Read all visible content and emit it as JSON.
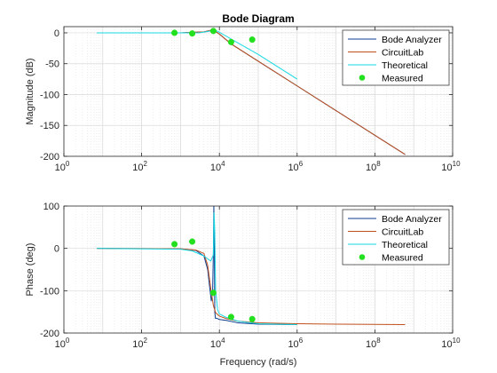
{
  "chart_data": [
    {
      "type": "line",
      "title": "Bode Diagram",
      "ylabel": "Magnitude (dB)",
      "xlabel": "",
      "xscale": "log",
      "xlim": [
        1,
        10000000000
      ],
      "ylim": [
        -200,
        10
      ],
      "xticks": [
        1,
        100,
        10000,
        1000000,
        100000000,
        10000000000
      ],
      "xtick_labels": [
        {
          "base": "10",
          "exp": "0"
        },
        {
          "base": "10",
          "exp": "2"
        },
        {
          "base": "10",
          "exp": "4"
        },
        {
          "base": "10",
          "exp": "6"
        },
        {
          "base": "10",
          "exp": "8"
        },
        {
          "base": "10",
          "exp": "10"
        }
      ],
      "yticks": [
        0,
        -50,
        -100,
        -150,
        -200
      ],
      "ytick_labels": [
        "0",
        "-50",
        "-100",
        "-150",
        "-200"
      ],
      "grid": true,
      "legend_position": "top-right",
      "series": [
        {
          "name": "Bode Analyzer",
          "color": "#0b3d91",
          "style": "line",
          "x": [
            7,
            1000,
            4000,
            6000,
            7500,
            10000,
            20000,
            100000,
            1000000,
            10000000,
            600000000
          ],
          "y": [
            0,
            0,
            1.5,
            4,
            3,
            -2,
            -18,
            -46,
            -86,
            -126,
            -197
          ]
        },
        {
          "name": "CircuitLab",
          "color": "#c0501d",
          "style": "line",
          "x": [
            7,
            1000,
            4000,
            6000,
            7500,
            10000,
            20000,
            100000,
            1000000,
            10000000,
            600000000
          ],
          "y": [
            0,
            0,
            1.5,
            4,
            3,
            -2,
            -18,
            -46,
            -86,
            -126,
            -197
          ]
        },
        {
          "name": "Theoretical",
          "color": "#16d9e3",
          "style": "line",
          "x": [
            7,
            1000,
            3000,
            6000,
            8000,
            10000,
            20000,
            100000,
            1000000
          ],
          "y": [
            0,
            0,
            0,
            3,
            4,
            1,
            -10,
            -35,
            -75
          ]
        },
        {
          "name": "Measured",
          "color": "#22e01e",
          "style": "markers",
          "x": [
            700,
            2000,
            7000,
            20000,
            70000
          ],
          "y": [
            0,
            -1,
            3,
            -15,
            -11
          ]
        }
      ]
    },
    {
      "type": "line",
      "title": "",
      "ylabel": "Phase (deg)",
      "xlabel": "Frequency  (rad/s)",
      "xscale": "log",
      "xlim": [
        1,
        10000000000
      ],
      "ylim": [
        -200,
        100
      ],
      "xticks": [
        1,
        100,
        10000,
        1000000,
        100000000,
        10000000000
      ],
      "xtick_labels": [
        {
          "base": "10",
          "exp": "0"
        },
        {
          "base": "10",
          "exp": "2"
        },
        {
          "base": "10",
          "exp": "4"
        },
        {
          "base": "10",
          "exp": "6"
        },
        {
          "base": "10",
          "exp": "8"
        },
        {
          "base": "10",
          "exp": "10"
        }
      ],
      "yticks": [
        100,
        0,
        -100,
        -200
      ],
      "ytick_labels": [
        "100",
        "0",
        "-100",
        "-200"
      ],
      "grid": true,
      "legend_position": "top-right",
      "series": [
        {
          "name": "Bode Analyzer",
          "color": "#0b3d91",
          "style": "line",
          "x": [
            7,
            1000,
            2500,
            4000,
            5000,
            5600,
            6200,
            6700,
            7000,
            7200,
            7400,
            7600,
            7900,
            8500,
            10000,
            15000,
            30000,
            100000,
            1000000
          ],
          "y": [
            0,
            -1,
            -5,
            -18,
            -50,
            -90,
            -125,
            -100,
            -10,
            100,
            10,
            -150,
            -165,
            -165,
            -168,
            -170,
            -176,
            -179,
            -180
          ]
        },
        {
          "name": "CircuitLab",
          "color": "#c0501d",
          "style": "line",
          "x": [
            7,
            1000,
            2500,
            4000,
            5000,
            6000,
            7000,
            8000,
            10000,
            15000,
            30000,
            100000,
            1000000,
            10000000,
            600000000
          ],
          "y": [
            0,
            -1,
            -4,
            -12,
            -40,
            -95,
            -135,
            -152,
            -160,
            -166,
            -172,
            -176,
            -178,
            -179,
            -180
          ]
        },
        {
          "name": "Theoretical",
          "color": "#16d9e3",
          "style": "line",
          "x": [
            7,
            1000,
            2000,
            4000,
            6000,
            7000,
            7300,
            7600,
            8000,
            9000,
            10000,
            15000,
            30000,
            100000,
            1000000
          ],
          "y": [
            0,
            -2,
            -6,
            -18,
            -30,
            -15,
            85,
            40,
            -100,
            -145,
            -155,
            -163,
            -172,
            -178,
            -180
          ]
        },
        {
          "name": "Measured",
          "color": "#22e01e",
          "style": "markers",
          "x": [
            700,
            2000,
            7000,
            20000,
            70000
          ],
          "y": [
            10,
            16,
            -105,
            -162,
            -167
          ]
        }
      ]
    }
  ]
}
